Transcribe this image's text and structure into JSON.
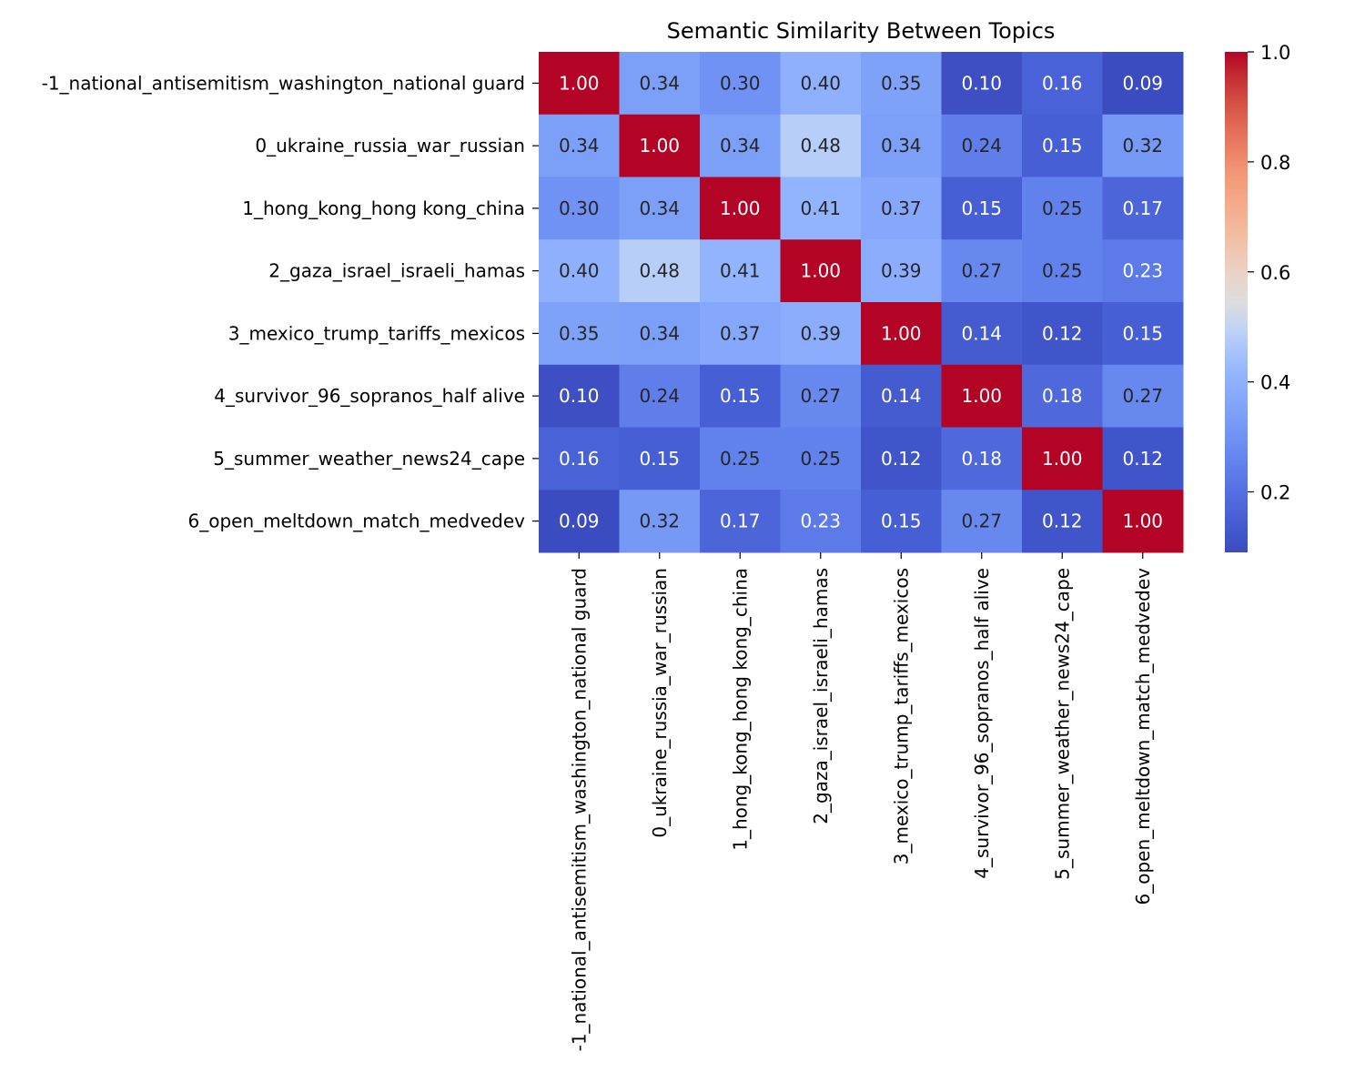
{
  "chart_data": {
    "type": "heatmap",
    "title": "Semantic Similarity Between Topics",
    "row_labels": [
      "-1_national_antisemitism_washington_national guard",
      "0_ukraine_russia_war_russian",
      "1_hong_kong_hong kong_china",
      "2_gaza_israel_israeli_hamas",
      "3_mexico_trump_tariffs_mexicos",
      "4_survivor_96_sopranos_half alive",
      "5_summer_weather_news24_cape",
      "6_open_meltdown_match_medvedev"
    ],
    "col_labels": [
      "-1_national_antisemitism_washington_national guard",
      "0_ukraine_russia_war_russian",
      "1_hong_kong_hong kong_china",
      "2_gaza_israel_israeli_hamas",
      "3_mexico_trump_tariffs_mexicos",
      "4_survivor_96_sopranos_half alive",
      "5_summer_weather_news24_cape",
      "6_open_meltdown_match_medvedev"
    ],
    "values": [
      [
        1.0,
        0.34,
        0.3,
        0.4,
        0.35,
        0.1,
        0.16,
        0.09
      ],
      [
        0.34,
        1.0,
        0.34,
        0.48,
        0.34,
        0.24,
        0.15,
        0.32
      ],
      [
        0.3,
        0.34,
        1.0,
        0.41,
        0.37,
        0.15,
        0.25,
        0.17
      ],
      [
        0.4,
        0.48,
        0.41,
        1.0,
        0.39,
        0.27,
        0.25,
        0.23
      ],
      [
        0.35,
        0.34,
        0.37,
        0.39,
        1.0,
        0.14,
        0.12,
        0.15
      ],
      [
        0.1,
        0.24,
        0.15,
        0.27,
        0.14,
        1.0,
        0.18,
        0.27
      ],
      [
        0.16,
        0.15,
        0.25,
        0.25,
        0.12,
        0.18,
        1.0,
        0.12
      ],
      [
        0.09,
        0.32,
        0.17,
        0.23,
        0.15,
        0.27,
        0.12,
        1.0
      ]
    ],
    "value_format": "0.00",
    "colormap": "coolwarm",
    "vmin": 0.09,
    "vmax": 1.0,
    "colorbar_ticks": [
      "0.2",
      "0.4",
      "0.6",
      "0.8",
      "1.0"
    ],
    "annotate": true,
    "grid": false
  }
}
